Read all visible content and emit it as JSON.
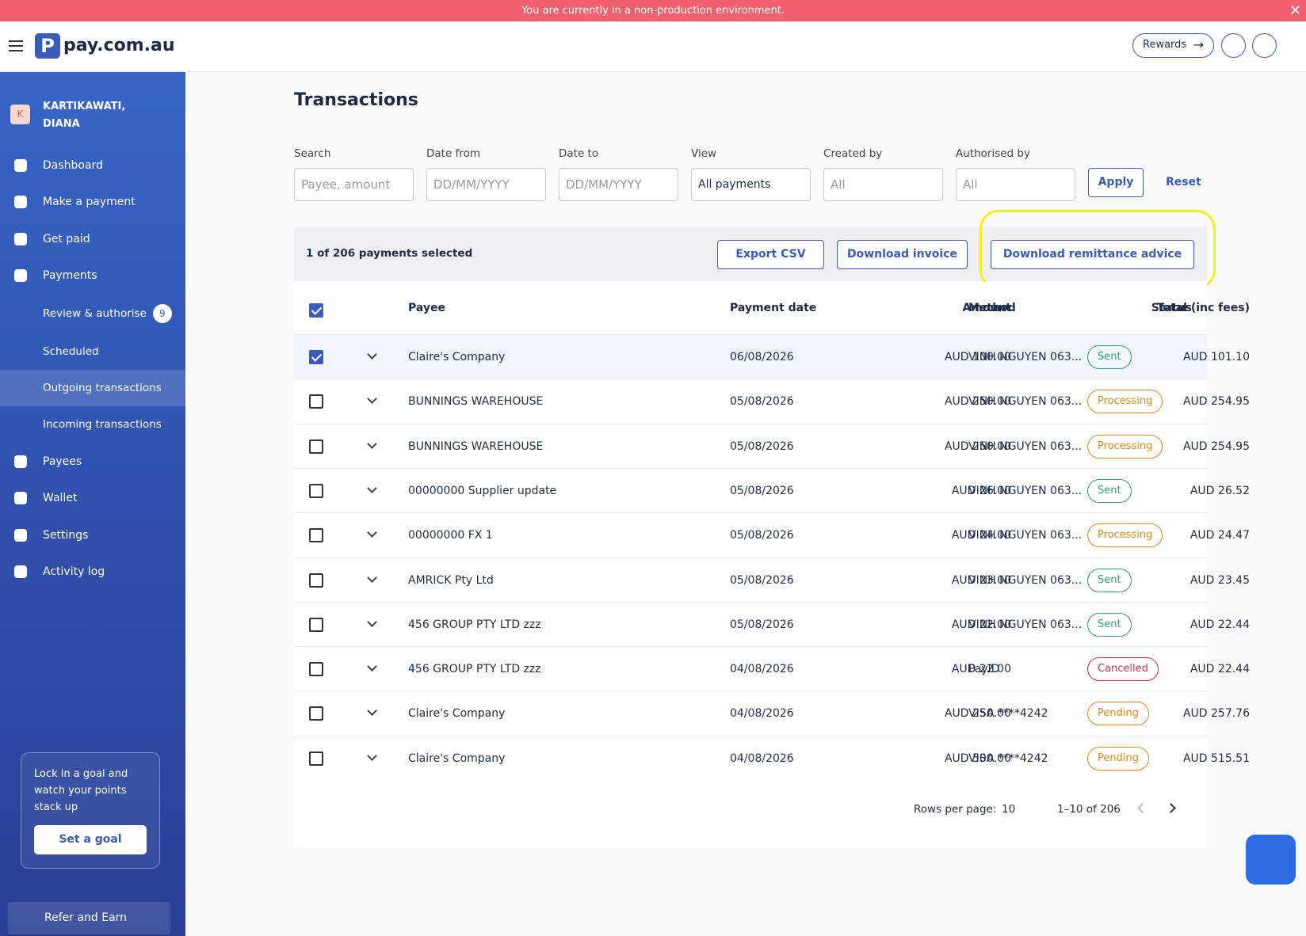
{
  "banner": {
    "text": "You are currently in a non-production environment."
  },
  "header": {
    "logo": "pay.com.au",
    "rewards": "Rewards"
  },
  "sidebar": {
    "avatar": "K",
    "user": "KARTIKAWATI, DIANA",
    "nav": [
      {
        "label": "Dashboard"
      },
      {
        "label": "Make a payment"
      },
      {
        "label": "Get paid"
      },
      {
        "label": "Payments"
      },
      {
        "label": "Review & authorise",
        "badge": "9",
        "sub": true
      },
      {
        "label": "Scheduled",
        "sub": true
      },
      {
        "label": "Outgoing transactions",
        "sub": true,
        "active": true
      },
      {
        "label": "Incoming transactions",
        "sub": true
      },
      {
        "label": "Payees"
      },
      {
        "label": "Wallet"
      },
      {
        "label": "Settings"
      },
      {
        "label": "Activity log"
      }
    ],
    "promo": "Lock in a goal and watch your points stack up",
    "promo_button": "Set a goal",
    "refer": "Refer and Earn"
  },
  "main": {
    "title": "Transactions",
    "filters": [
      {
        "label": "Search",
        "placeholder": "Payee, amount"
      },
      {
        "label": "Date from",
        "placeholder": "DD/MM/YYYY"
      },
      {
        "label": "Date to",
        "placeholder": "DD/MM/YYYY"
      },
      {
        "label": "View",
        "value": "All payments"
      },
      {
        "label": "Created by",
        "placeholder": "All"
      },
      {
        "label": "Authorised by",
        "placeholder": "All"
      }
    ],
    "apply": "Apply",
    "reset": "Reset",
    "selected": "1 of 206 payments selected",
    "actions": [
      "Export CSV",
      "Download invoice",
      "Download remittance advice"
    ],
    "columns": [
      "Payee",
      "Amount",
      "Payment date",
      "Total (inc fees)",
      "Method",
      "Status"
    ],
    "rows": [
      {
        "checked": true,
        "cells": [
          "Claire's Company",
          "AUD 100.00",
          "06/08/2026",
          "AUD 101.10",
          "VINH NGUYEN 063...",
          "Sent"
        ],
        "status_color": "#2f9e74"
      },
      {
        "checked": false,
        "cells": [
          "BUNNINGS WAREHOUSE",
          "AUD 250.00",
          "05/08/2026",
          "AUD 254.95",
          "VINH NGUYEN 063...",
          "Processing"
        ],
        "status_color": "#d98a1c"
      },
      {
        "checked": false,
        "cells": [
          "BUNNINGS WAREHOUSE",
          "AUD 250.00",
          "05/08/2026",
          "AUD 254.95",
          "VINH NGUYEN 063...",
          "Processing"
        ],
        "status_color": "#d98a1c"
      },
      {
        "checked": false,
        "cells": [
          "00000000 Supplier update",
          "AUD 26.00",
          "05/08/2026",
          "AUD 26.52",
          "VINH NGUYEN 063...",
          "Sent"
        ],
        "status_color": "#2f9e74"
      },
      {
        "checked": false,
        "cells": [
          "00000000 FX 1",
          "AUD 24.00",
          "05/08/2026",
          "AUD 24.47",
          "VINH NGUYEN 063...",
          "Processing"
        ],
        "status_color": "#d98a1c"
      },
      {
        "checked": false,
        "cells": [
          "AMRICK Pty Ltd",
          "AUD 23.00",
          "05/08/2026",
          "AUD 23.45",
          "VINH NGUYEN 063...",
          "Sent"
        ],
        "status_color": "#2f9e74"
      },
      {
        "checked": false,
        "cells": [
          "456 GROUP PTY LTD zzz",
          "AUD 22.00",
          "05/08/2026",
          "AUD 22.44",
          "VINH NGUYEN 063...",
          "Sent"
        ],
        "status_color": "#2f9e74"
      },
      {
        "checked": false,
        "cells": [
          "456 GROUP PTY LTD zzz",
          "AUD 22.00",
          "04/08/2026",
          "AUD 22.44",
          "PayID",
          "Cancelled"
        ],
        "status_color": "#c9344b"
      },
      {
        "checked": false,
        "cells": [
          "Claire's Company",
          "AUD 250.00",
          "04/08/2026",
          "AUD 257.76",
          "VISA ****4242",
          "Pending"
        ],
        "status_color": "#d98a1c"
      },
      {
        "checked": false,
        "cells": [
          "Claire's Company",
          "AUD 500.00",
          "04/08/2026",
          "AUD 515.51",
          "VISA ****4242",
          "Pending"
        ],
        "status_color": "#d98a1c"
      }
    ],
    "rows_per_page_label": "Rows per page:",
    "rows_per_page": "10",
    "range": "1–10 of 206"
  }
}
